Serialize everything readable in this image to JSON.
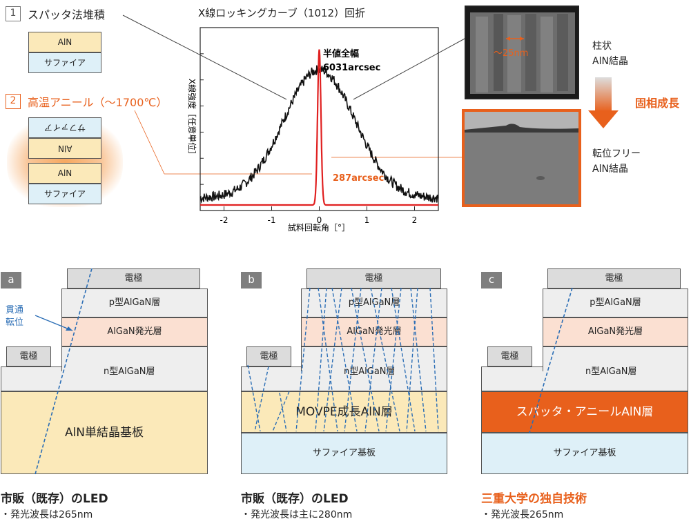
{
  "top": {
    "step1": {
      "num": "1",
      "title": "スパッタ法堆積",
      "layer_ain": "AlN",
      "layer_sapphire": "サファイア"
    },
    "step2": {
      "num": "2",
      "title": "高温アニール（〜1700℃）",
      "layer_sapphire_flipped": "サファイア",
      "layer_ain_flipped": "AlN",
      "layer_ain": "AlN",
      "layer_sapphire": "サファイア"
    },
    "chart_title": "X線ロッキングカーブ（1012）回折",
    "fwhm_label": "半値全幅",
    "fwhm_value": "6031arcsec",
    "red_value": "287arcsec",
    "ylabel": "X線強度［任意単位］",
    "xlabel": "試料回転角［°］",
    "tem_top_scale": "〜25nm",
    "right_label_top": [
      "柱状",
      "AlN結晶"
    ],
    "arrow_label": "固相成長",
    "right_label_bottom": [
      "転位フリー",
      "AlN結晶"
    ]
  },
  "chart_data": {
    "type": "line",
    "title": "X線ロッキングカーブ（1012）回折",
    "xlabel": "試料回転角［°］",
    "ylabel": "X線強度［任意単位］",
    "xlim": [
      -2.5,
      2.5
    ],
    "x_ticks": [
      "-2",
      "-2",
      "-1",
      "0",
      "1",
      "2"
    ],
    "series": [
      {
        "name": "",
        "color": "#111111",
        "width_label": "6031arcsec",
        "x": [
          -2.5,
          -2.0,
          -1.5,
          -1.0,
          -0.5,
          0.0,
          0.5,
          1.0,
          1.5,
          2.0,
          2.5
        ],
        "y": [
          0.04,
          0.07,
          0.14,
          0.3,
          0.55,
          0.8,
          0.55,
          0.3,
          0.14,
          0.07,
          0.04
        ]
      },
      {
        "name": "",
        "color": "#e02020",
        "width_label": "287arcsec",
        "x": [
          -2.5,
          -0.3,
          -0.1,
          -0.04,
          0.0,
          0.04,
          0.1,
          0.3,
          2.5
        ],
        "y": [
          0.0,
          0.01,
          0.05,
          0.3,
          0.92,
          0.3,
          0.05,
          0.01,
          0.0
        ]
      }
    ]
  },
  "panels": {
    "a": {
      "tag": "a",
      "electrode_top": "電極",
      "p_layer": "p型AlGaN層",
      "emit_layer": "AlGaN発光層",
      "n_layer": "n型AlGaN層",
      "electrode_side": "電極",
      "substrate": "AlN単結晶基板",
      "annotation": [
        "貫通",
        "転位"
      ],
      "caption": "市販（既存）のLED",
      "sub": "・発光波長は265nm"
    },
    "b": {
      "tag": "b",
      "electrode_top": "電極",
      "p_layer": "p型AlGaN層",
      "emit_layer": "AlGaN発光層",
      "n_layer": "n型AlGaN層",
      "electrode_side": "電極",
      "ain_layer": "MOVPE成長AlN層",
      "substrate": "サファイア基板",
      "caption": "市販（既存）のLED",
      "sub": "・発光波長は主に280nm"
    },
    "c": {
      "tag": "c",
      "electrode_top": "電極",
      "p_layer": "p型AlGaN層",
      "emit_layer": "AlGaN発光層",
      "n_layer": "n型AlGaN層",
      "electrode_side": "電極",
      "ain_layer": "スパッタ・アニールAlN層",
      "substrate": "サファイア基板",
      "caption": "三重大学の独自技術",
      "sub": "・発光波長265nm"
    }
  },
  "colors": {
    "accent": "#e8601c",
    "ain": "#fbe9b9",
    "sapphire": "#def0f8",
    "emit": "#fbe0d2",
    "dislocation": "#2a6db5"
  }
}
